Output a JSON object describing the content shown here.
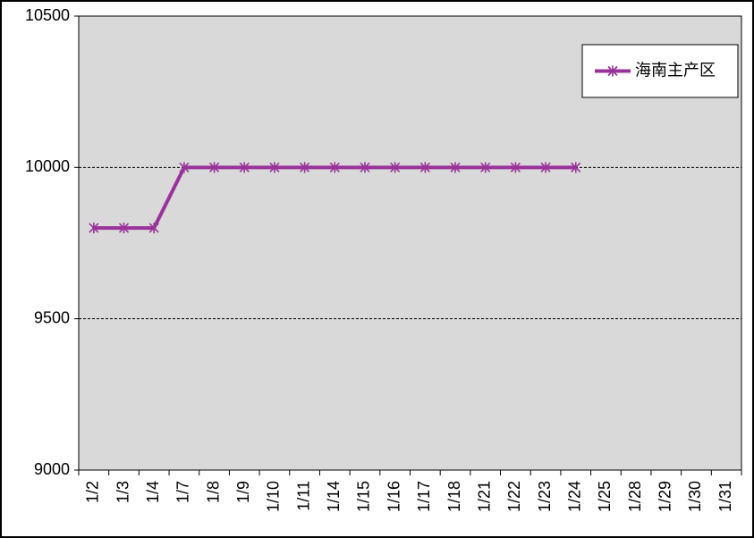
{
  "chart_data": {
    "type": "line",
    "categories": [
      "1/2",
      "1/3",
      "1/4",
      "1/7",
      "1/8",
      "1/9",
      "1/10",
      "1/11",
      "1/14",
      "1/15",
      "1/16",
      "1/17",
      "1/18",
      "1/21",
      "1/22",
      "1/23",
      "1/24",
      "1/25",
      "1/28",
      "1/29",
      "1/30",
      "1/31"
    ],
    "series": [
      {
        "name": "海南主产区",
        "color": "#993399",
        "values": [
          9800,
          9800,
          9800,
          10000,
          10000,
          10000,
          10000,
          10000,
          10000,
          10000,
          10000,
          10000,
          10000,
          10000,
          10000,
          10000,
          10000,
          null,
          null,
          null,
          null,
          null
        ]
      }
    ],
    "ylim": [
      9000,
      10500
    ],
    "yticks": [
      9000,
      9500,
      10000,
      10500
    ],
    "grid": true,
    "legend": "upper right"
  }
}
